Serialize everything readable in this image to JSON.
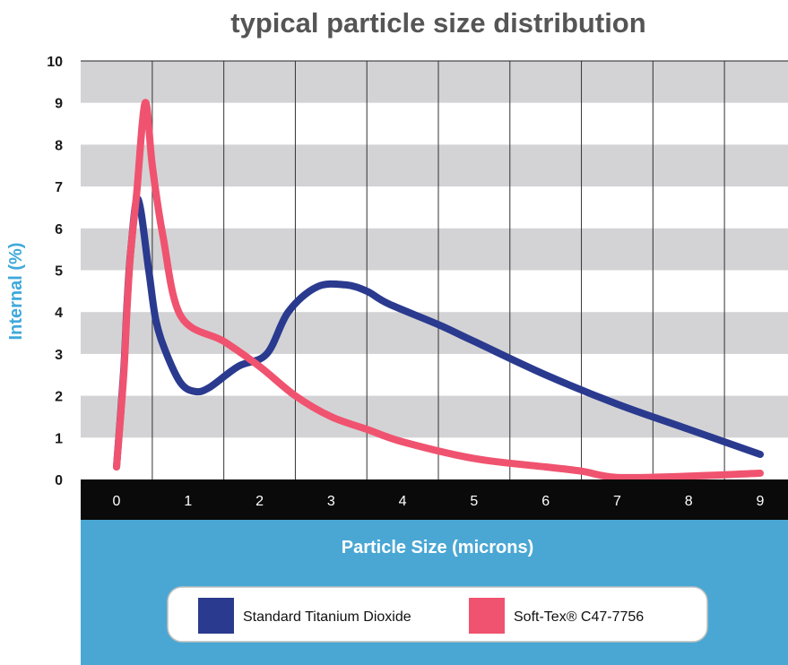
{
  "chart_data": {
    "type": "line",
    "title": "typical particle size distribution",
    "xlabel": "Particle Size (microns)",
    "ylabel": "Internal (%)",
    "x_tick_labels": [
      "0",
      "1",
      "2",
      "3",
      "4",
      "5",
      "6",
      "7",
      "8",
      "9"
    ],
    "y_tick_labels": [
      "0",
      "1",
      "2",
      "3",
      "4",
      "5",
      "6",
      "7",
      "8",
      "9",
      "10"
    ],
    "xlim": [
      0,
      9
    ],
    "ylim": [
      0,
      10
    ],
    "grid": "alternating horizontal bands, vertical lines",
    "legend_position": "bottom-center",
    "series": [
      {
        "name": "Standard Titanium Dioxide",
        "color": "#2a3a8f",
        "points": [
          [
            0,
            0.3
          ],
          [
            0.1,
            2.6
          ],
          [
            0.15,
            4.3
          ],
          [
            0.2,
            5.5
          ],
          [
            0.3,
            6.7
          ],
          [
            0.45,
            5.0
          ],
          [
            0.55,
            3.8
          ],
          [
            0.7,
            3.0
          ],
          [
            0.9,
            2.3
          ],
          [
            1.1,
            2.1
          ],
          [
            1.3,
            2.2
          ],
          [
            1.7,
            2.7
          ],
          [
            2.1,
            3.0
          ],
          [
            2.4,
            4.0
          ],
          [
            2.8,
            4.6
          ],
          [
            3.2,
            4.65
          ],
          [
            3.5,
            4.5
          ],
          [
            3.8,
            4.2
          ],
          [
            4.5,
            3.7
          ],
          [
            5.0,
            3.3
          ],
          [
            6.0,
            2.5
          ],
          [
            7.0,
            1.8
          ],
          [
            8.0,
            1.2
          ],
          [
            9.0,
            0.6
          ]
        ]
      },
      {
        "name": "Soft-Tex® C47-7756",
        "color": "#f0536f",
        "points": [
          [
            0,
            0.3
          ],
          [
            0.1,
            2.5
          ],
          [
            0.15,
            4.2
          ],
          [
            0.2,
            5.5
          ],
          [
            0.28,
            6.8
          ],
          [
            0.4,
            9.0
          ],
          [
            0.5,
            7.5
          ],
          [
            0.65,
            5.8
          ],
          [
            0.9,
            3.9
          ],
          [
            1.5,
            3.3
          ],
          [
            2.0,
            2.7
          ],
          [
            2.5,
            2.0
          ],
          [
            3.0,
            1.5
          ],
          [
            3.5,
            1.2
          ],
          [
            4.0,
            0.9
          ],
          [
            5.0,
            0.5
          ],
          [
            6.0,
            0.3
          ],
          [
            6.5,
            0.2
          ],
          [
            7.0,
            0.05
          ],
          [
            8.0,
            0.08
          ],
          [
            9.0,
            0.15
          ]
        ]
      }
    ]
  }
}
